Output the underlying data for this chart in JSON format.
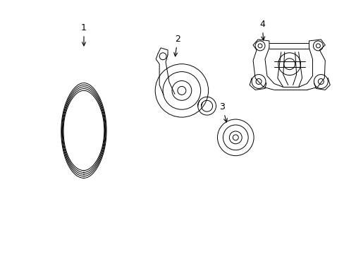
{
  "background_color": "#ffffff",
  "line_color": "#000000",
  "line_width": 0.7,
  "fig_width": 4.89,
  "fig_height": 3.6
}
